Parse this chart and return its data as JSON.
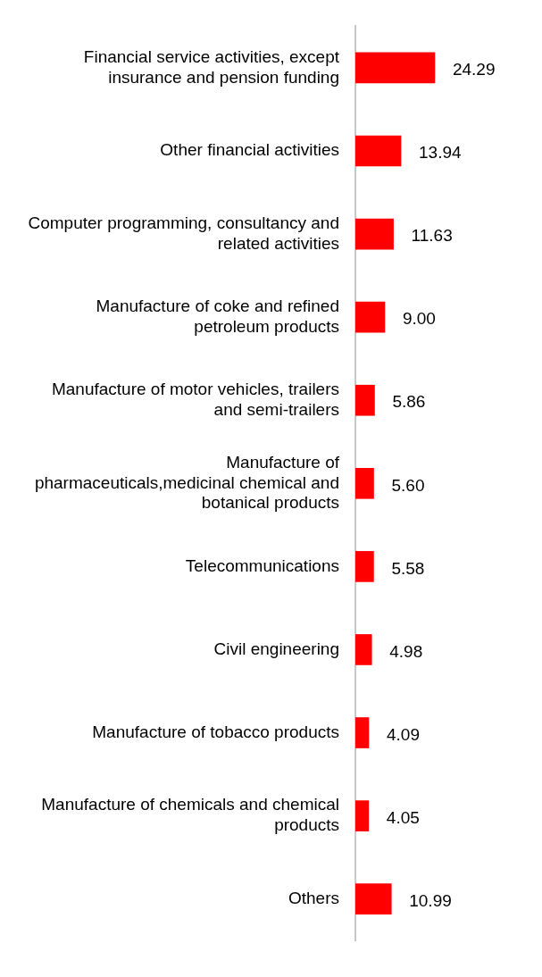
{
  "chart_data": {
    "type": "bar",
    "orientation": "horizontal",
    "categories": [
      "Financial service activities, except insurance and pension funding",
      "Other financial activities",
      "Computer programming, consultancy and related activities",
      "Manufacture of coke and refined petroleum products",
      "Manufacture of motor vehicles, trailers and semi-trailers",
      "Manufacture of pharmaceuticals,medicinal chemical and botanical products",
      "Telecommunications",
      "Civil engineering",
      "Manufacture of tobacco products",
      "Manufacture of chemicals and chemical products",
      "Others"
    ],
    "values": [
      24.29,
      13.94,
      11.63,
      9.0,
      5.86,
      5.6,
      5.58,
      4.98,
      4.09,
      4.05,
      10.99
    ],
    "value_labels": [
      "24.29",
      "13.94",
      "11.63",
      "9.00",
      "5.86",
      "5.60",
      "5.58",
      "4.98",
      "4.09",
      "4.05",
      "10.99"
    ],
    "color": "#ff0000"
  }
}
